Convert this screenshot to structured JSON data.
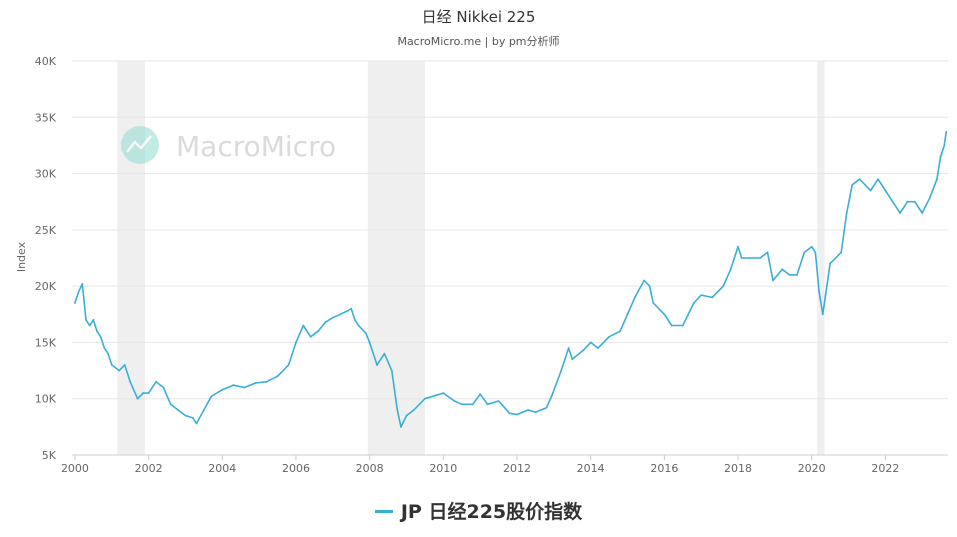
{
  "title": "日经 Nikkei 225",
  "subtitle": "MacroMicro.me | by pm分析师",
  "watermark": "MacroMicro",
  "colors": {
    "line": "#3aaed8",
    "recession": "#efefef",
    "grid": "#e6e6e6",
    "watermark_icon": "#8fdcd0"
  },
  "chart_data": {
    "type": "line",
    "ylabel": "Index",
    "xlim": [
      1999.92,
      2023.7
    ],
    "ylim": [
      5000,
      40000
    ],
    "y_ticks": [
      5000,
      10000,
      15000,
      20000,
      25000,
      30000,
      35000,
      40000
    ],
    "y_tick_labels": [
      "5K",
      "10K",
      "15K",
      "20K",
      "25K",
      "30K",
      "35K",
      "40K"
    ],
    "x_ticks": [
      2000,
      2002,
      2004,
      2006,
      2008,
      2010,
      2012,
      2014,
      2016,
      2018,
      2020,
      2022
    ],
    "x_tick_labels": [
      "2000",
      "2002",
      "2004",
      "2006",
      "2008",
      "2010",
      "2012",
      "2014",
      "2016",
      "2018",
      "2020",
      "2022"
    ],
    "recession_bands": [
      [
        2001.15,
        2001.9
      ],
      [
        2007.95,
        2009.5
      ],
      [
        2020.15,
        2020.35
      ]
    ],
    "legend_position": "bottom",
    "grid": true,
    "series": [
      {
        "name": "JP 日经225股价指数",
        "x": [
          2000.0,
          2000.1,
          2000.2,
          2000.3,
          2000.4,
          2000.5,
          2000.6,
          2000.7,
          2000.8,
          2000.9,
          2001.0,
          2001.2,
          2001.35,
          2001.5,
          2001.7,
          2001.85,
          2002.0,
          2002.2,
          2002.4,
          2002.6,
          2002.8,
          2003.0,
          2003.2,
          2003.3,
          2003.5,
          2003.7,
          2004.0,
          2004.3,
          2004.6,
          2004.9,
          2005.2,
          2005.5,
          2005.8,
          2006.0,
          2006.2,
          2006.4,
          2006.6,
          2006.8,
          2007.0,
          2007.2,
          2007.4,
          2007.5,
          2007.6,
          2007.7,
          2007.9,
          2008.0,
          2008.2,
          2008.4,
          2008.6,
          2008.75,
          2008.85,
          2009.0,
          2009.2,
          2009.5,
          2009.8,
          2010.0,
          2010.3,
          2010.5,
          2010.8,
          2011.0,
          2011.2,
          2011.5,
          2011.8,
          2012.0,
          2012.3,
          2012.5,
          2012.8,
          2012.95,
          2013.2,
          2013.4,
          2013.5,
          2013.8,
          2014.0,
          2014.2,
          2014.5,
          2014.8,
          2015.0,
          2015.2,
          2015.45,
          2015.6,
          2015.7,
          2016.0,
          2016.2,
          2016.5,
          2016.8,
          2017.0,
          2017.3,
          2017.6,
          2017.8,
          2018.0,
          2018.1,
          2018.3,
          2018.6,
          2018.8,
          2018.95,
          2019.2,
          2019.4,
          2019.6,
          2019.8,
          2020.0,
          2020.1,
          2020.2,
          2020.3,
          2020.5,
          2020.8,
          2020.95,
          2021.1,
          2021.3,
          2021.6,
          2021.8,
          2022.0,
          2022.2,
          2022.4,
          2022.6,
          2022.8,
          2023.0,
          2023.2,
          2023.4,
          2023.5,
          2023.6,
          2023.65
        ],
        "values": [
          18500,
          19500,
          20200,
          17000,
          16500,
          17000,
          16000,
          15500,
          14500,
          14000,
          13000,
          12500,
          13000,
          11500,
          10000,
          10500,
          10500,
          11500,
          11000,
          9500,
          9000,
          8500,
          8300,
          7800,
          9000,
          10200,
          10800,
          11200,
          11000,
          11400,
          11500,
          12000,
          13000,
          15000,
          16500,
          15500,
          16000,
          16800,
          17200,
          17500,
          17800,
          18000,
          17000,
          16500,
          15800,
          15000,
          13000,
          14000,
          12500,
          9000,
          7500,
          8500,
          9000,
          10000,
          10300,
          10500,
          9800,
          9500,
          9500,
          10400,
          9500,
          9800,
          8700,
          8600,
          9000,
          8800,
          9200,
          10300,
          12500,
          14500,
          13500,
          14300,
          15000,
          14500,
          15500,
          16000,
          17500,
          19000,
          20500,
          20000,
          18500,
          17500,
          16500,
          16500,
          18500,
          19200,
          19000,
          20000,
          21500,
          23500,
          22500,
          22500,
          22500,
          23000,
          20500,
          21500,
          21000,
          21000,
          23000,
          23500,
          23000,
          19500,
          17500,
          22000,
          23000,
          26500,
          29000,
          29500,
          28500,
          29500,
          28500,
          27500,
          26500,
          27500,
          27500,
          26500,
          27800,
          29500,
          31500,
          32500,
          33700
        ]
      }
    ]
  }
}
